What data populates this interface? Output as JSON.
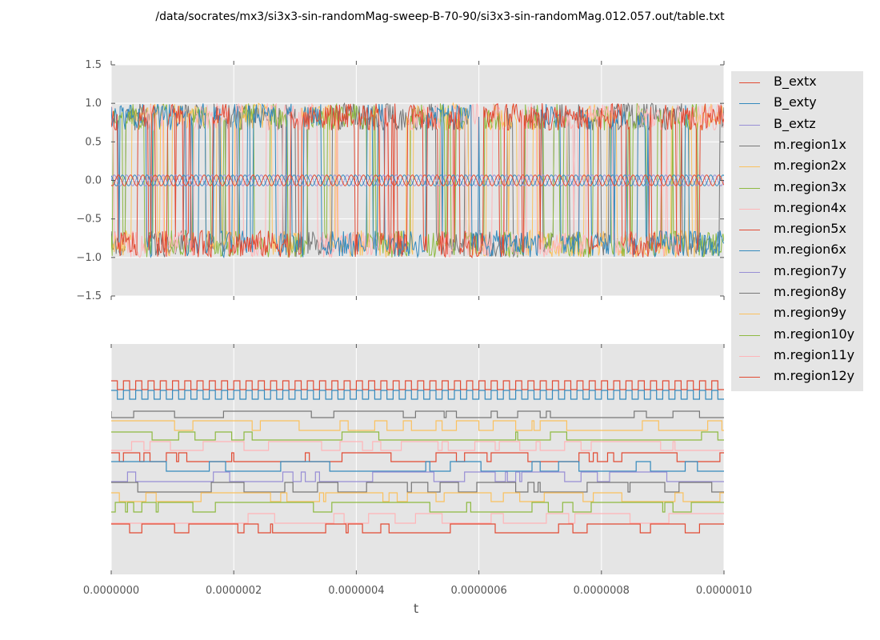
{
  "title": "/data/socrates/mx3/si3x3-sin-randomMag-sweep-B-70-90/si3x3-sin-randomMag.012.057.out/table.txt",
  "chart_data": [
    {
      "type": "line",
      "panel": "top",
      "xlim": [
        0,
        1e-06
      ],
      "ylim": [
        -1.5,
        1.5
      ],
      "y_ticks": [
        "1.5",
        "1.0",
        "0.5",
        "0.0",
        "−0.5",
        "−1.0",
        "−1.5"
      ],
      "y_tick_values": [
        1.5,
        1.0,
        0.5,
        0.0,
        -0.5,
        -1.0,
        -1.5
      ],
      "grid": true,
      "series_in_panel": [
        "B_extx",
        "B_exty",
        "B_extz",
        "m.region1x",
        "m.region2x",
        "m.region3x",
        "m.region4x",
        "m.region5x",
        "m.region6x"
      ],
      "b_field_amplitude": 0.07,
      "b_field_periods": 50,
      "magnetization_range": [
        -1.0,
        1.0
      ]
    },
    {
      "type": "line",
      "panel": "bottom",
      "xlim": [
        0,
        1e-06
      ],
      "xlabel": "t",
      "x_ticks": [
        "0.0000000",
        "0.0000002",
        "0.0000004",
        "0.0000006",
        "0.0000008",
        "0.0000010"
      ],
      "x_tick_values": [
        0,
        2e-07,
        4e-07,
        6e-07,
        8e-07,
        1e-06
      ],
      "y_ticks": [],
      "grid": true,
      "series_in_panel": [
        "B_extx",
        "B_exty",
        "m.region1x",
        "m.region2x",
        "m.region3x",
        "m.region4x",
        "m.region5x",
        "m.region6x",
        "m.region7y",
        "m.region8y",
        "m.region9y",
        "m.region10y",
        "m.region11y",
        "m.region12y"
      ],
      "square_wave_periods": 50
    }
  ],
  "legend": {
    "placement": "outside right",
    "entries": [
      {
        "name": "B_extx",
        "color": "#e24a33"
      },
      {
        "name": "B_exty",
        "color": "#348abd"
      },
      {
        "name": "B_extz",
        "color": "#988ed5"
      },
      {
        "name": "m.region1x",
        "color": "#777777"
      },
      {
        "name": "m.region2x",
        "color": "#fbc15e"
      },
      {
        "name": "m.region3x",
        "color": "#8eba42"
      },
      {
        "name": "m.region4x",
        "color": "#ffb5b8"
      },
      {
        "name": "m.region5x",
        "color": "#e24a33"
      },
      {
        "name": "m.region6x",
        "color": "#348abd"
      },
      {
        "name": "m.region7y",
        "color": "#988ed5"
      },
      {
        "name": "m.region8y",
        "color": "#777777"
      },
      {
        "name": "m.region9y",
        "color": "#fbc15e"
      },
      {
        "name": "m.region10y",
        "color": "#8eba42"
      },
      {
        "name": "m.region11y",
        "color": "#ffb5b8"
      },
      {
        "name": "m.region12y",
        "color": "#e24a33"
      }
    ]
  },
  "colors": {
    "plot_background": "#e5e5e5",
    "grid": "#ffffff",
    "tick_label": "#555555"
  }
}
